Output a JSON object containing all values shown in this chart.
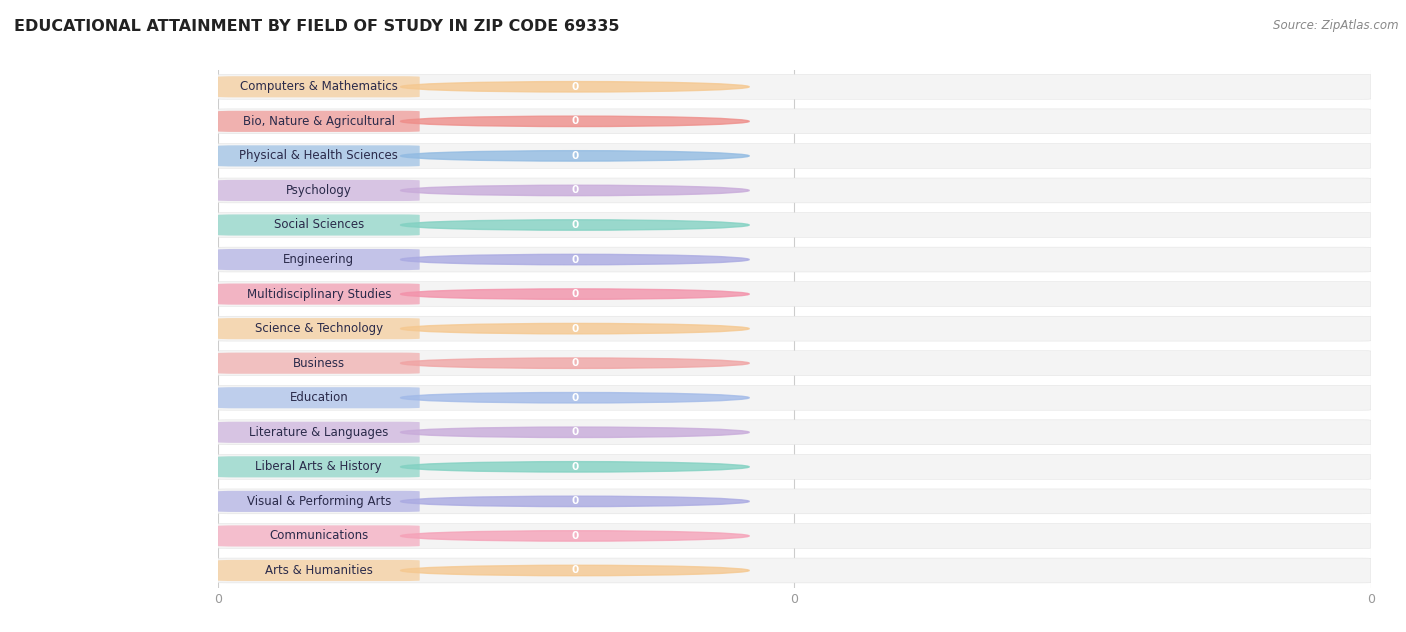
{
  "title": "EDUCATIONAL ATTAINMENT BY FIELD OF STUDY IN ZIP CODE 69335",
  "source": "Source: ZipAtlas.com",
  "categories": [
    "Computers & Mathematics",
    "Bio, Nature & Agricultural",
    "Physical & Health Sciences",
    "Psychology",
    "Social Sciences",
    "Engineering",
    "Multidisciplinary Studies",
    "Science & Technology",
    "Business",
    "Education",
    "Literature & Languages",
    "Liberal Arts & History",
    "Visual & Performing Arts",
    "Communications",
    "Arts & Humanities"
  ],
  "values": [
    0,
    0,
    0,
    0,
    0,
    0,
    0,
    0,
    0,
    0,
    0,
    0,
    0,
    0,
    0
  ],
  "bar_colors": [
    "#F5C890",
    "#EE8E8A",
    "#92BBE2",
    "#C8ABDA",
    "#82D1C2",
    "#AAAAE2",
    "#F292AA",
    "#F5C890",
    "#F0A4A4",
    "#A2BAE8",
    "#C8ABDA",
    "#82D1C2",
    "#AAAAE2",
    "#F4A2B8",
    "#F5C890"
  ],
  "background_color": "#ffffff",
  "plot_bg_color": "#f7f7f7",
  "row_bg_color": "#f0f0f0",
  "title_fontsize": 11.5,
  "label_fontsize": 8.5,
  "source_fontsize": 8.5
}
